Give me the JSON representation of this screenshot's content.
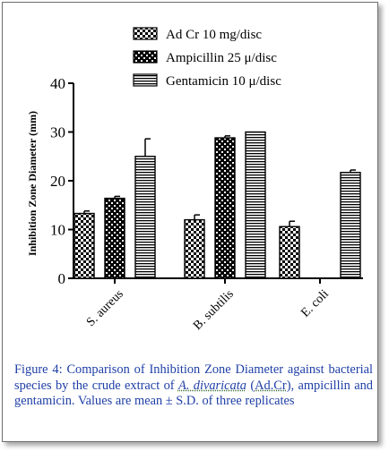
{
  "chart_data": {
    "type": "bar",
    "categories": [
      "S. aureus",
      "B. subtilis",
      "E. coli"
    ],
    "series": [
      {
        "name": "Ad Cr 10 mg/disc",
        "pattern": "checker",
        "values": [
          13.3,
          12.0,
          10.6
        ],
        "errors": [
          0.5,
          1.0,
          1.1
        ]
      },
      {
        "name": "Ampicillin 25 μ/disc",
        "pattern": "dots",
        "values": [
          16.4,
          28.8,
          null
        ],
        "errors": [
          0.4,
          0.4,
          null
        ]
      },
      {
        "name": "Gentamicin 10 μ/disc",
        "pattern": "hlines",
        "values": [
          25.0,
          30.0,
          21.7
        ],
        "errors": [
          3.6,
          0.0,
          0.5
        ]
      }
    ],
    "ylabel": "Inhibition Zone Diameter (mm)",
    "xlabel": "",
    "ylim": [
      0,
      40
    ],
    "yticks": [
      0,
      10,
      20,
      30,
      40
    ],
    "legend_position": "top",
    "grid": false
  },
  "caption": {
    "prefix": "Figure 4: Comparison of Inhibition Zone Diameter against bacterial species by the crude extract of ",
    "species_part1": "A. di",
    "species_part2": "varicata",
    "abbr_open": " (",
    "abbr": "Ad.Cr",
    "suffix": "), ampicillin and gentamicin. Values are mean ± S.D. of three replicates"
  },
  "colors": {
    "caption": "#1f3fa6",
    "bars": "#000000"
  }
}
